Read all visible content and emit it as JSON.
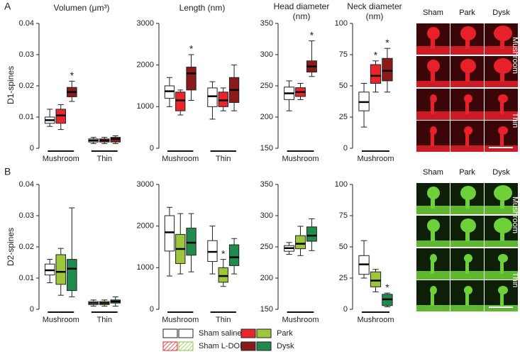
{
  "panel_labels": [
    "A",
    "B"
  ],
  "row_labels": [
    "D1-spines",
    "D2-spines"
  ],
  "micrographs": [
    {
      "columns": [
        "Sham",
        "Park",
        "Dysk"
      ],
      "rows": [
        "Mushroom",
        "Thin"
      ]
    },
    {
      "columns": [
        "Sham",
        "Park",
        "Dysk"
      ],
      "rows": [
        "Mushroom",
        "Thin"
      ]
    }
  ],
  "legend": [
    {
      "label": "Sham saline",
      "colors": [
        "#ffffff",
        "#ffffff"
      ]
    },
    {
      "label": "Sham L-DOPA",
      "colors": [
        "#e8262b",
        "#8dc63f"
      ],
      "pattern": "hatch"
    },
    {
      "label": "Park",
      "colors": [
        "#e8262b",
        "#9dc63c"
      ]
    },
    {
      "label": "Dysk",
      "colors": [
        "#8b1a1a",
        "#1f8b4c"
      ]
    }
  ],
  "chart_data": [
    {
      "type": "box",
      "title": "Volumen (μm³)",
      "categories": [
        "Mushroom",
        "Thin"
      ],
      "ylim": [
        0,
        0.04
      ],
      "yticks": [
        0,
        0.01,
        0.02,
        0.03,
        0.04
      ],
      "series": [
        {
          "name": "Sham saline",
          "color": "#ffffff",
          "min": [
            0.007,
            0.0015
          ],
          "q1": [
            0.008,
            0.002
          ],
          "median": [
            0.009,
            0.0025
          ],
          "q3": [
            0.01,
            0.003
          ],
          "max": [
            0.0125,
            0.0035
          ]
        },
        {
          "name": "Park",
          "color": "#e8262b",
          "min": [
            0.006,
            0.0015
          ],
          "q1": [
            0.008,
            0.002
          ],
          "median": [
            0.0105,
            0.0025
          ],
          "q3": [
            0.0125,
            0.003
          ],
          "max": [
            0.014,
            0.0035
          ]
        },
        {
          "name": "Dysk",
          "color": "#8b1a1a",
          "min": [
            0.015,
            0.0015
          ],
          "q1": [
            0.0165,
            0.002
          ],
          "median": [
            0.018,
            0.003
          ],
          "q3": [
            0.0195,
            0.0035
          ],
          "max": [
            0.0215,
            0.004
          ],
          "labels": [
            "*",
            null
          ]
        }
      ]
    },
    {
      "type": "box",
      "title": "Length (nm)",
      "categories": [
        "Mushroom",
        "Thin"
      ],
      "ylim": [
        0,
        3000
      ],
      "yticks": [
        0,
        1000,
        2000,
        3000
      ],
      "series": [
        {
          "name": "Sham saline",
          "color": "#ffffff",
          "min": [
            1000,
            700
          ],
          "q1": [
            1200,
            1000
          ],
          "median": [
            1370,
            1250
          ],
          "q3": [
            1500,
            1450
          ],
          "max": [
            1700,
            1600
          ]
        },
        {
          "name": "Park",
          "color": "#e8262b",
          "min": [
            800,
            900
          ],
          "q1": [
            900,
            1000
          ],
          "median": [
            1150,
            1150
          ],
          "q3": [
            1350,
            1350
          ],
          "max": [
            1400,
            1450
          ]
        },
        {
          "name": "Dysk",
          "color": "#8b1a1a",
          "min": [
            1150,
            900
          ],
          "q1": [
            1400,
            1100
          ],
          "median": [
            1800,
            1400
          ],
          "q3": [
            1950,
            1700
          ],
          "max": [
            2250,
            2000
          ],
          "labels": [
            "*",
            null
          ]
        }
      ]
    },
    {
      "type": "box",
      "title": [
        "Head diameter",
        "(nm)"
      ],
      "categories": [
        "Mushroom"
      ],
      "ylim": [
        150,
        350
      ],
      "yticks": [
        150,
        200,
        250,
        300,
        350
      ],
      "series": [
        {
          "name": "Sham saline",
          "color": "#ffffff",
          "min": [
            210
          ],
          "q1": [
            228
          ],
          "median": [
            238
          ],
          "q3": [
            248
          ],
          "max": [
            258
          ]
        },
        {
          "name": "Park",
          "color": "#e8262b",
          "min": [
            228
          ],
          "q1": [
            233
          ],
          "median": [
            240
          ],
          "q3": [
            247
          ],
          "max": [
            254
          ]
        },
        {
          "name": "Dysk",
          "color": "#8b1a1a",
          "min": [
            265
          ],
          "q1": [
            272
          ],
          "median": [
            281
          ],
          "q3": [
            290
          ],
          "max": [
            322
          ],
          "labels": [
            "*"
          ]
        }
      ]
    },
    {
      "type": "box",
      "title": [
        "Neck diameter",
        "(nm)"
      ],
      "categories": [
        "Mushroom"
      ],
      "ylim": [
        0,
        100
      ],
      "yticks": [
        0,
        25,
        50,
        75,
        100
      ],
      "series": [
        {
          "name": "Sham saline",
          "color": "#ffffff",
          "min": [
            17
          ],
          "q1": [
            30
          ],
          "median": [
            37
          ],
          "q3": [
            45
          ],
          "max": [
            52
          ]
        },
        {
          "name": "Park",
          "color": "#e8262b",
          "min": [
            45
          ],
          "q1": [
            52
          ],
          "median": [
            58
          ],
          "q3": [
            67
          ],
          "max": [
            70
          ],
          "labels": [
            "*"
          ]
        },
        {
          "name": "Dysk",
          "color": "#8b1a1a",
          "min": [
            45
          ],
          "q1": [
            54
          ],
          "median": [
            62
          ],
          "q3": [
            72
          ],
          "max": [
            80
          ],
          "labels": [
            "*"
          ]
        }
      ]
    },
    {
      "type": "box",
      "categories": [
        "Mushroom",
        "Thin"
      ],
      "ylim": [
        0,
        0.04
      ],
      "yticks": [
        0,
        0.01,
        0.02,
        0.03,
        0.04
      ],
      "series": [
        {
          "name": "Sham saline",
          "color": "#ffffff",
          "min": [
            0.0085,
            0.001
          ],
          "q1": [
            0.011,
            0.0015
          ],
          "median": [
            0.0125,
            0.002
          ],
          "q3": [
            0.0145,
            0.0025
          ],
          "max": [
            0.016,
            0.003
          ]
        },
        {
          "name": "Park",
          "color": "#9dc63c",
          "min": [
            0.0045,
            0.001
          ],
          "q1": [
            0.008,
            0.0015
          ],
          "median": [
            0.012,
            0.002
          ],
          "q3": [
            0.0175,
            0.0025
          ],
          "max": [
            0.0195,
            0.003
          ]
        },
        {
          "name": "Dysk",
          "color": "#1f8b4c",
          "min": [
            0.004,
            0.001
          ],
          "q1": [
            0.006,
            0.002
          ],
          "median": [
            0.013,
            0.0025
          ],
          "q3": [
            0.016,
            0.003
          ],
          "max": [
            0.0325,
            0.004
          ]
        }
      ]
    },
    {
      "type": "box",
      "categories": [
        "Mushroom",
        "Thin"
      ],
      "ylim": [
        0,
        3000
      ],
      "yticks": [
        0,
        1000,
        2000,
        3000
      ],
      "series": [
        {
          "name": "Sham saline",
          "color": "#ffffff",
          "min": [
            800,
            850
          ],
          "q1": [
            1400,
            1150
          ],
          "median": [
            1850,
            1380
          ],
          "q3": [
            2250,
            1650
          ],
          "max": [
            2450,
            2000
          ]
        },
        {
          "name": "Park",
          "color": "#9dc63c",
          "min": [
            850,
            550
          ],
          "q1": [
            1100,
            650
          ],
          "median": [
            1450,
            800
          ],
          "q3": [
            1800,
            1000
          ],
          "max": [
            2300,
            1200
          ],
          "labels": [
            null,
            "*"
          ]
        },
        {
          "name": "Dysk",
          "color": "#1f8b4c",
          "min": [
            900,
            850
          ],
          "q1": [
            1300,
            1050
          ],
          "median": [
            1600,
            1250
          ],
          "q3": [
            1950,
            1550
          ],
          "max": [
            2300,
            1700
          ]
        }
      ]
    },
    {
      "type": "box",
      "categories": [
        "Mushroom"
      ],
      "ylim": [
        150,
        350
      ],
      "yticks": [
        150,
        200,
        250,
        300,
        350
      ],
      "series": [
        {
          "name": "Sham saline",
          "color": "#ffffff",
          "min": [
            238
          ],
          "q1": [
            243
          ],
          "median": [
            248
          ],
          "q3": [
            252
          ],
          "max": [
            257
          ]
        },
        {
          "name": "Park",
          "color": "#9dc63c",
          "min": [
            236
          ],
          "q1": [
            247
          ],
          "median": [
            255
          ],
          "q3": [
            268
          ],
          "max": [
            283
          ]
        },
        {
          "name": "Dysk",
          "color": "#1f8b4c",
          "min": [
            244
          ],
          "q1": [
            259
          ],
          "median": [
            268
          ],
          "q3": [
            282
          ],
          "max": [
            295
          ]
        }
      ]
    },
    {
      "type": "box",
      "categories": [
        "Mushroom"
      ],
      "ylim": [
        0,
        100
      ],
      "yticks": [
        0,
        25,
        50,
        75,
        100
      ],
      "series": [
        {
          "name": "Sham saline",
          "color": "#ffffff",
          "min": [
            25
          ],
          "q1": [
            28
          ],
          "median": [
            36
          ],
          "q3": [
            43
          ],
          "max": [
            55
          ]
        },
        {
          "name": "Park",
          "color": "#9dc63c",
          "min": [
            14
          ],
          "q1": [
            18
          ],
          "median": [
            23
          ],
          "q3": [
            30
          ],
          "max": [
            32
          ]
        },
        {
          "name": "Dysk",
          "color": "#1f8b4c",
          "min": [
            2
          ],
          "q1": [
            3
          ],
          "median": [
            8
          ],
          "q3": [
            12
          ],
          "max": [
            13
          ],
          "labels": [
            "*"
          ]
        }
      ]
    }
  ]
}
